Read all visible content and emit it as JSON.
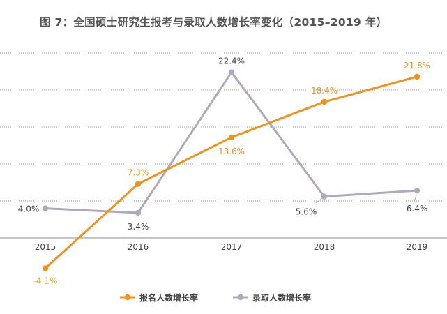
{
  "chart_data": {
    "type": "line",
    "title": "图 7：全国硕士研究生报考与录取人数增长率变化（2015–2019 年）",
    "xlabel": "",
    "ylabel": "",
    "categories": [
      "2015",
      "2016",
      "2017",
      "2018",
      "2019"
    ],
    "ylim": [
      -5,
      25
    ],
    "grid": true,
    "legend_position": "bottom-center",
    "series": [
      {
        "name": "报名人数增长率",
        "color": "#f0921e",
        "values": [
          -4.1,
          7.3,
          13.6,
          18.4,
          21.8
        ],
        "labels": [
          "-4.1%",
          "7.3%",
          "13.6%",
          "18.4%",
          "21.8%"
        ]
      },
      {
        "name": "录取人数增长率",
        "color": "#b1a8bd",
        "values": [
          4.0,
          3.4,
          22.4,
          5.6,
          6.4
        ],
        "labels": [
          "4.0%",
          "3.4%",
          "22.4%",
          "5.6%",
          "6.4%"
        ]
      }
    ]
  }
}
